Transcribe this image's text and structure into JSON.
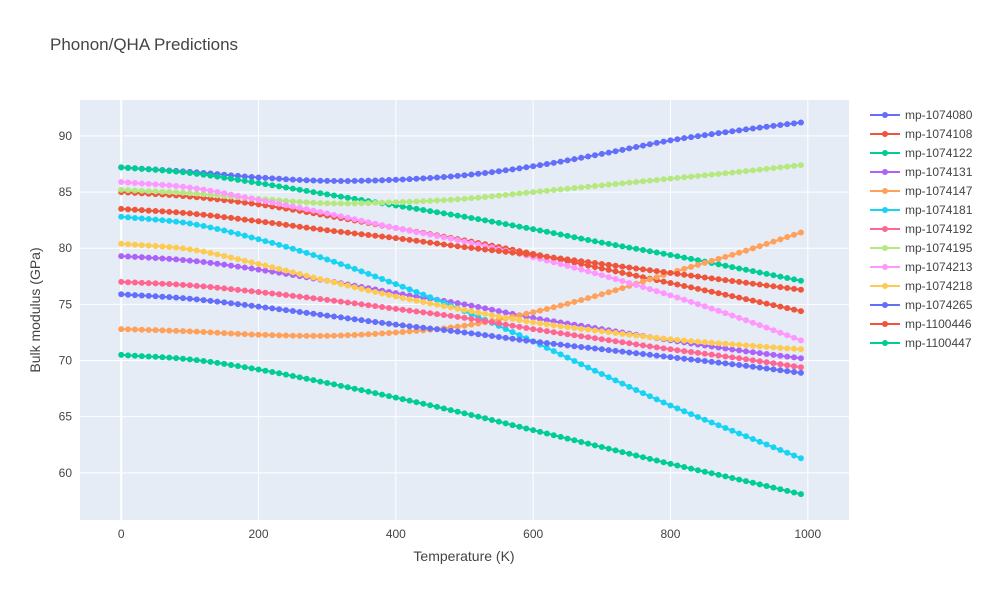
{
  "chart_data": {
    "type": "line",
    "title": "Phonon/QHA Predictions",
    "xlabel": "Temperature (K)",
    "ylabel": "Bulk modulus (GPa)",
    "xlim": [
      -60,
      1060
    ],
    "ylim": [
      55.8,
      93.2
    ],
    "xticks": [
      0,
      200,
      400,
      600,
      800,
      1000
    ],
    "yticks": [
      60,
      65,
      70,
      75,
      80,
      85,
      90
    ],
    "grid": true,
    "legend_position": "right",
    "x_start": 0,
    "x_end": 990,
    "x_step": 10,
    "series": [
      {
        "name": "mp-1074080",
        "color": "#636efa",
        "anchors": [
          [
            0,
            87.2
          ],
          [
            100,
            86.8
          ],
          [
            200,
            86.3
          ],
          [
            300,
            86.0
          ],
          [
            400,
            86.1
          ],
          [
            500,
            86.5
          ],
          [
            600,
            87.3
          ],
          [
            700,
            88.4
          ],
          [
            800,
            89.6
          ],
          [
            900,
            90.5
          ],
          [
            990,
            91.2
          ]
        ]
      },
      {
        "name": "mp-1074108",
        "color": "#EF553B",
        "anchors": [
          [
            0,
            85.0
          ],
          [
            100,
            84.6
          ],
          [
            200,
            83.9
          ],
          [
            300,
            82.9
          ],
          [
            400,
            81.8
          ],
          [
            500,
            80.7
          ],
          [
            600,
            79.5
          ],
          [
            700,
            78.2
          ],
          [
            800,
            76.9
          ],
          [
            900,
            75.6
          ],
          [
            990,
            74.4
          ]
        ]
      },
      {
        "name": "mp-1074122",
        "color": "#00cc96",
        "anchors": [
          [
            0,
            87.2
          ],
          [
            100,
            86.7
          ],
          [
            200,
            85.8
          ],
          [
            300,
            84.8
          ],
          [
            400,
            83.8
          ],
          [
            500,
            82.8
          ],
          [
            600,
            81.7
          ],
          [
            700,
            80.5
          ],
          [
            800,
            79.4
          ],
          [
            900,
            78.2
          ],
          [
            990,
            77.1
          ]
        ]
      },
      {
        "name": "mp-1074131",
        "color": "#ab63fa",
        "anchors": [
          [
            0,
            79.3
          ],
          [
            100,
            78.9
          ],
          [
            200,
            78.1
          ],
          [
            300,
            77.1
          ],
          [
            400,
            76.0
          ],
          [
            500,
            75.0
          ],
          [
            600,
            73.8
          ],
          [
            700,
            72.8
          ],
          [
            800,
            71.8
          ],
          [
            900,
            70.9
          ],
          [
            990,
            70.2
          ]
        ]
      },
      {
        "name": "mp-1074147",
        "color": "#FFA15A",
        "anchors": [
          [
            0,
            72.8
          ],
          [
            100,
            72.6
          ],
          [
            200,
            72.3
          ],
          [
            300,
            72.2
          ],
          [
            400,
            72.5
          ],
          [
            500,
            73.1
          ],
          [
            600,
            74.3
          ],
          [
            700,
            75.9
          ],
          [
            800,
            77.8
          ],
          [
            900,
            79.6
          ],
          [
            990,
            81.4
          ]
        ]
      },
      {
        "name": "mp-1074181",
        "color": "#19d3f3",
        "anchors": [
          [
            0,
            82.8
          ],
          [
            100,
            82.2
          ],
          [
            200,
            80.8
          ],
          [
            300,
            79.0
          ],
          [
            400,
            76.8
          ],
          [
            500,
            74.4
          ],
          [
            600,
            71.7
          ],
          [
            700,
            68.8
          ],
          [
            800,
            66.0
          ],
          [
            900,
            63.5
          ],
          [
            990,
            61.3
          ]
        ]
      },
      {
        "name": "mp-1074192",
        "color": "#FF6692",
        "anchors": [
          [
            0,
            77.0
          ],
          [
            100,
            76.7
          ],
          [
            200,
            76.1
          ],
          [
            300,
            75.4
          ],
          [
            400,
            74.6
          ],
          [
            500,
            73.8
          ],
          [
            600,
            72.8
          ],
          [
            700,
            71.9
          ],
          [
            800,
            71.0
          ],
          [
            900,
            70.2
          ],
          [
            990,
            69.4
          ]
        ]
      },
      {
        "name": "mp-1074195",
        "color": "#B6E880",
        "anchors": [
          [
            0,
            85.2
          ],
          [
            100,
            84.9
          ],
          [
            200,
            84.4
          ],
          [
            300,
            84.0
          ],
          [
            400,
            84.1
          ],
          [
            500,
            84.4
          ],
          [
            600,
            85.0
          ],
          [
            700,
            85.6
          ],
          [
            800,
            86.2
          ],
          [
            900,
            86.8
          ],
          [
            990,
            87.4
          ]
        ]
      },
      {
        "name": "mp-1074213",
        "color": "#FF97FF",
        "anchors": [
          [
            0,
            85.9
          ],
          [
            100,
            85.4
          ],
          [
            200,
            84.3
          ],
          [
            300,
            83.1
          ],
          [
            400,
            81.8
          ],
          [
            500,
            80.6
          ],
          [
            600,
            79.2
          ],
          [
            700,
            77.6
          ],
          [
            800,
            75.8
          ],
          [
            900,
            73.8
          ],
          [
            990,
            71.8
          ]
        ]
      },
      {
        "name": "mp-1074218",
        "color": "#FECB52",
        "anchors": [
          [
            0,
            80.4
          ],
          [
            100,
            79.9
          ],
          [
            200,
            78.6
          ],
          [
            300,
            77.1
          ],
          [
            400,
            75.7
          ],
          [
            500,
            74.5
          ],
          [
            600,
            73.4
          ],
          [
            700,
            72.6
          ],
          [
            800,
            71.9
          ],
          [
            900,
            71.4
          ],
          [
            990,
            71.0
          ]
        ]
      },
      {
        "name": "mp-1074265",
        "color": "#636efa",
        "anchors": [
          [
            0,
            75.9
          ],
          [
            100,
            75.5
          ],
          [
            200,
            74.8
          ],
          [
            300,
            74.0
          ],
          [
            400,
            73.2
          ],
          [
            500,
            72.5
          ],
          [
            600,
            71.7
          ],
          [
            700,
            71.0
          ],
          [
            800,
            70.3
          ],
          [
            900,
            69.6
          ],
          [
            990,
            68.9
          ]
        ]
      },
      {
        "name": "mp-1100446",
        "color": "#EF553B",
        "anchors": [
          [
            0,
            83.5
          ],
          [
            100,
            83.1
          ],
          [
            200,
            82.4
          ],
          [
            300,
            81.6
          ],
          [
            400,
            80.9
          ],
          [
            500,
            80.1
          ],
          [
            600,
            79.4
          ],
          [
            700,
            78.6
          ],
          [
            800,
            77.8
          ],
          [
            900,
            77.0
          ],
          [
            990,
            76.3
          ]
        ]
      },
      {
        "name": "mp-1100447",
        "color": "#00cc96",
        "anchors": [
          [
            0,
            70.5
          ],
          [
            100,
            70.1
          ],
          [
            200,
            69.2
          ],
          [
            300,
            68.0
          ],
          [
            400,
            66.7
          ],
          [
            500,
            65.3
          ],
          [
            600,
            63.8
          ],
          [
            700,
            62.3
          ],
          [
            800,
            60.8
          ],
          [
            900,
            59.4
          ],
          [
            990,
            58.1
          ]
        ]
      }
    ]
  }
}
